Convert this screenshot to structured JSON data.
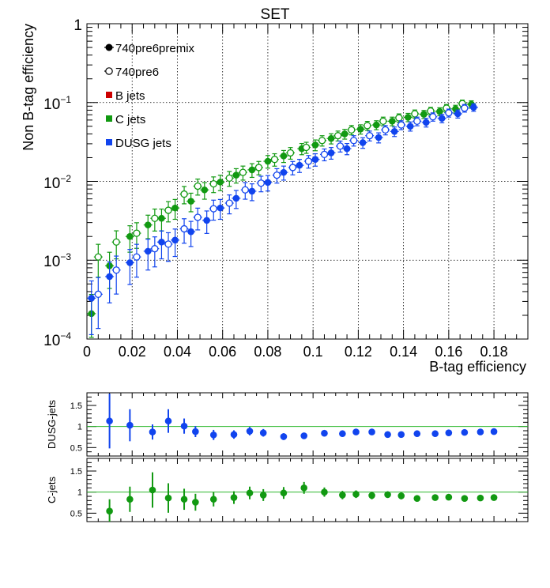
{
  "chart_data": [
    {
      "type": "scatter",
      "title": "SET",
      "xlabel": "B-tag efficiency",
      "ylabel": "Non B-tag efficiency",
      "xlim": [
        0,
        0.195
      ],
      "ylim": [
        0.0001,
        1
      ],
      "yscale": "log",
      "grid": true,
      "x_ticks": [
        0,
        0.02,
        0.04,
        0.06,
        0.08,
        0.1,
        0.12,
        0.14,
        0.16,
        0.18
      ],
      "x_tick_labels": [
        "0",
        "0.02",
        "0.04",
        "0.06",
        "0.08",
        "0.1",
        "0.12",
        "0.14",
        "0.16",
        "0.18"
      ],
      "y_tick_labels": {
        "base": "10",
        "m4": "−4",
        "m3": "−3",
        "m2": "−2",
        "m1": "−1",
        "one": "1"
      },
      "legend": {
        "placement": "top-left",
        "entries": [
          {
            "label": "740pre6premix",
            "marker": "filled-circle",
            "color": "#000000"
          },
          {
            "label": "740pre6",
            "marker": "open-circle",
            "color": "#000000"
          },
          {
            "label": "B jets",
            "marker": "square",
            "color": "#cc0000"
          },
          {
            "label": "C jets",
            "marker": "square",
            "color": "#119911"
          },
          {
            "label": "DUSG jets",
            "marker": "square",
            "color": "#1144ee"
          }
        ]
      },
      "series": [
        {
          "name": "C jets 740pre6premix",
          "color": "#119911",
          "filled": true,
          "x": [
            0.002,
            0.01,
            0.019,
            0.027,
            0.033,
            0.039,
            0.046,
            0.052,
            0.059,
            0.066,
            0.073,
            0.08,
            0.087,
            0.095,
            0.101,
            0.108,
            0.114,
            0.121,
            0.128,
            0.135,
            0.142,
            0.149,
            0.156,
            0.163,
            0.17
          ],
          "y": [
            0.00021,
            0.00085,
            0.002,
            0.0028,
            0.0034,
            0.0046,
            0.0056,
            0.0078,
            0.0098,
            0.012,
            0.014,
            0.018,
            0.021,
            0.026,
            0.029,
            0.035,
            0.04,
            0.046,
            0.052,
            0.058,
            0.065,
            0.071,
            0.077,
            0.083,
            0.095
          ]
        },
        {
          "name": "C jets 740pre6",
          "color": "#119911",
          "filled": false,
          "x": [
            0.005,
            0.013,
            0.022,
            0.03,
            0.036,
            0.043,
            0.049,
            0.056,
            0.063,
            0.069,
            0.076,
            0.083,
            0.09,
            0.097,
            0.104,
            0.111,
            0.117,
            0.124,
            0.131,
            0.138,
            0.145,
            0.152,
            0.159,
            0.166
          ],
          "y": [
            0.0011,
            0.0017,
            0.0022,
            0.0034,
            0.0043,
            0.0069,
            0.0087,
            0.0093,
            0.011,
            0.013,
            0.015,
            0.019,
            0.023,
            0.027,
            0.033,
            0.038,
            0.045,
            0.051,
            0.058,
            0.064,
            0.072,
            0.078,
            0.085,
            0.097
          ]
        },
        {
          "name": "DUSG jets 740pre6premix",
          "color": "#1144ee",
          "filled": true,
          "x": [
            0.002,
            0.01,
            0.019,
            0.027,
            0.033,
            0.039,
            0.046,
            0.053,
            0.059,
            0.066,
            0.073,
            0.08,
            0.087,
            0.094,
            0.101,
            0.108,
            0.115,
            0.122,
            0.129,
            0.136,
            0.143,
            0.15,
            0.157,
            0.164,
            0.171
          ],
          "y": [
            0.00033,
            0.00062,
            0.00093,
            0.0013,
            0.0017,
            0.0018,
            0.0023,
            0.0032,
            0.0046,
            0.0061,
            0.0075,
            0.0097,
            0.013,
            0.016,
            0.019,
            0.023,
            0.026,
            0.031,
            0.036,
            0.043,
            0.05,
            0.056,
            0.063,
            0.072,
            0.087
          ]
        },
        {
          "name": "DUSG jets 740pre6",
          "color": "#1144ee",
          "filled": false,
          "x": [
            0.005,
            0.013,
            0.022,
            0.03,
            0.036,
            0.043,
            0.049,
            0.056,
            0.063,
            0.07,
            0.077,
            0.084,
            0.091,
            0.098,
            0.105,
            0.112,
            0.118,
            0.125,
            0.132,
            0.139,
            0.146,
            0.153,
            0.16,
            0.167
          ],
          "y": [
            0.00037,
            0.00075,
            0.0011,
            0.0014,
            0.0016,
            0.0025,
            0.0035,
            0.0045,
            0.0053,
            0.0078,
            0.0095,
            0.012,
            0.015,
            0.018,
            0.022,
            0.028,
            0.033,
            0.038,
            0.045,
            0.052,
            0.058,
            0.066,
            0.074,
            0.085
          ]
        }
      ]
    },
    {
      "type": "scatter",
      "title": "",
      "xlabel": "",
      "ylabel": "DUSG-jets",
      "xlim": [
        0,
        0.195
      ],
      "ylim": [
        0.3,
        1.8
      ],
      "y_tick_labels": [
        "0.5",
        "1",
        "1.5"
      ],
      "reference_line": 1,
      "series": [
        {
          "name": "DUSG ratio",
          "color": "#1144ee",
          "x": [
            0.01,
            0.019,
            0.029,
            0.036,
            0.043,
            0.048,
            0.056,
            0.065,
            0.072,
            0.078,
            0.087,
            0.096,
            0.105,
            0.113,
            0.119,
            0.126,
            0.133,
            0.139,
            0.146,
            0.154,
            0.16,
            0.167,
            0.174,
            0.18
          ],
          "y": [
            1.13,
            1.03,
            0.87,
            1.13,
            1.01,
            0.88,
            0.8,
            0.81,
            0.89,
            0.85,
            0.76,
            0.78,
            0.84,
            0.83,
            0.87,
            0.87,
            0.81,
            0.81,
            0.83,
            0.83,
            0.85,
            0.86,
            0.87,
            0.88
          ],
          "err": [
            0.65,
            0.38,
            0.18,
            0.28,
            0.18,
            0.13,
            0.12,
            0.1,
            0.1,
            0.09,
            0.08,
            0.07,
            0.06,
            0.06,
            0.06,
            0.05,
            0.05,
            0.05,
            0.04,
            0.04,
            0.04,
            0.04,
            0.04,
            0.04
          ]
        }
      ]
    },
    {
      "type": "scatter",
      "title": "",
      "xlabel": "",
      "ylabel": "C-jets",
      "xlim": [
        0,
        0.195
      ],
      "ylim": [
        0.3,
        1.8
      ],
      "y_tick_labels": [
        "0.5",
        "1",
        "1.5"
      ],
      "reference_line": 1,
      "series": [
        {
          "name": "C ratio",
          "color": "#119911",
          "x": [
            0.01,
            0.019,
            0.029,
            0.036,
            0.043,
            0.048,
            0.056,
            0.065,
            0.072,
            0.078,
            0.087,
            0.096,
            0.105,
            0.113,
            0.119,
            0.126,
            0.133,
            0.139,
            0.146,
            0.154,
            0.16,
            0.167,
            0.174,
            0.18
          ],
          "y": [
            0.55,
            0.83,
            1.05,
            0.86,
            0.83,
            0.76,
            0.83,
            0.87,
            0.98,
            0.93,
            0.98,
            1.1,
            1.0,
            0.93,
            0.95,
            0.92,
            0.94,
            0.91,
            0.85,
            0.87,
            0.88,
            0.85,
            0.86,
            0.87
          ],
          "err": [
            0.28,
            0.3,
            0.42,
            0.35,
            0.25,
            0.2,
            0.17,
            0.15,
            0.15,
            0.14,
            0.14,
            0.14,
            0.11,
            0.1,
            0.09,
            0.09,
            0.08,
            0.08,
            0.07,
            0.07,
            0.06,
            0.06,
            0.06,
            0.06
          ]
        }
      ]
    }
  ]
}
